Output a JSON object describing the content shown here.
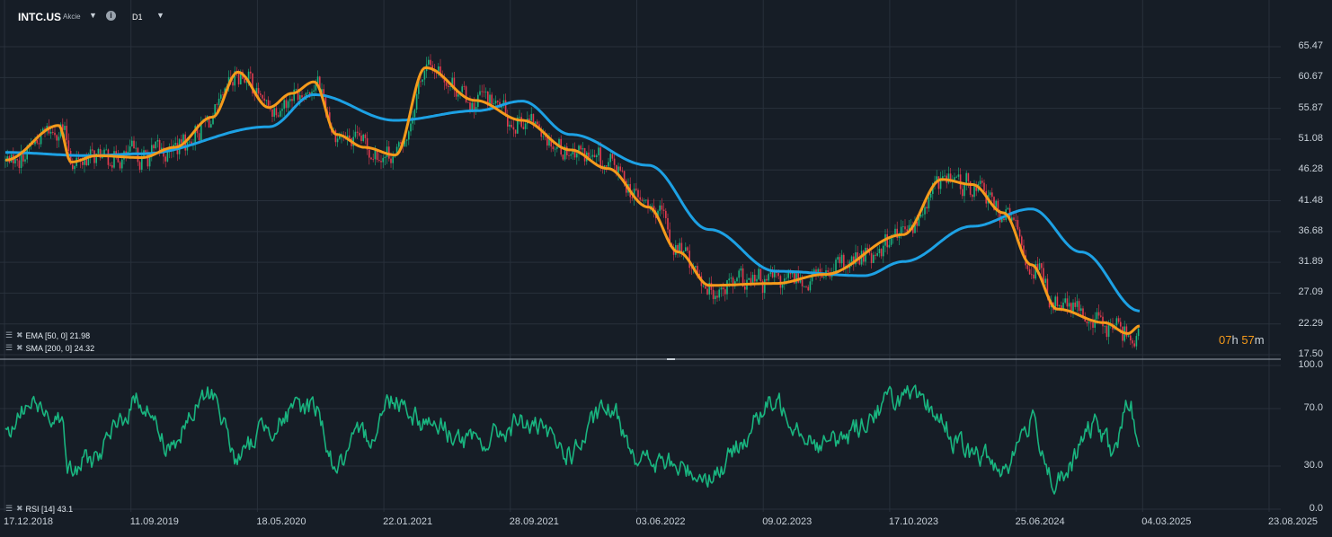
{
  "header": {
    "symbol": "INTC.US",
    "symbol_type": "Akcie",
    "timeframe": "D1"
  },
  "indicators": {
    "ema": {
      "label": "EMA [50, 0] 21.98",
      "color": "#f59a1b"
    },
    "sma": {
      "label": "SMA [200, 0] 24.32",
      "color": "#1da1e4"
    },
    "rsi": {
      "label": "RSI [14] 43.1",
      "color": "#19b47f"
    }
  },
  "countdown": {
    "hours": "07",
    "h_unit": "h",
    "minutes": "57",
    "m_unit": "m"
  },
  "colors": {
    "background": "#161d26",
    "grid": "#28303b",
    "candle_up": "#19b47f",
    "candle_down": "#e03a4e",
    "ema": "#f59a1b",
    "sma": "#1da1e4",
    "rsi": "#19b47f"
  },
  "chart_data": [
    {
      "type": "candlestick",
      "title": "INTC.US",
      "y_ticks": [
        "65.47",
        "60.67",
        "55.87",
        "51.08",
        "46.28",
        "41.48",
        "36.68",
        "31.89",
        "27.09",
        "22.29",
        "17.50"
      ],
      "ylim": [
        17.5,
        65.47
      ],
      "x_ticks": [
        "17.12.2018",
        "11.09.2019",
        "18.05.2020",
        "22.01.2021",
        "28.09.2021",
        "03.06.2022",
        "09.02.2023",
        "17.10.2023",
        "25.06.2024",
        "04.03.2025",
        "23.08.2025"
      ],
      "grid": true,
      "series": [
        {
          "name": "EMA [50, 0]",
          "x": [
            "17.12.2018",
            "01.04.2019",
            "25.04.2019",
            "15.06.2019",
            "11.09.2019",
            "15.11.2019",
            "28.01.2020",
            "18.03.2020",
            "18.05.2020",
            "02.07.2020",
            "15.08.2020",
            "28.09.2020",
            "22.11.2020",
            "22.01.2021",
            "22.03.2021",
            "28.06.2021",
            "28.09.2021",
            "01.01.2022",
            "15.03.2022",
            "03.06.2022",
            "01.08.2022",
            "01.10.2022",
            "09.02.2023",
            "15.05.2023",
            "17.10.2023",
            "01.01.2024",
            "01.03.2024",
            "01.05.2024",
            "25.06.2024",
            "15.08.2024",
            "15.11.2024",
            "01.01.2025",
            "24.01.2025"
          ],
          "values": [
            47.8,
            53.2,
            47.5,
            48.5,
            48.2,
            49.8,
            54.5,
            61.5,
            56.0,
            58.2,
            60.0,
            51.8,
            49.8,
            48.6,
            62.2,
            57.1,
            54.0,
            49.4,
            46.5,
            40.5,
            33.5,
            28.3,
            28.6,
            30.0,
            36.2,
            44.8,
            44.0,
            39.6,
            31.5,
            24.6,
            22.5,
            20.8,
            21.98
          ]
        },
        {
          "name": "SMA [200, 0]",
          "x": [
            "17.12.2018",
            "01.06.2019",
            "11.09.2019",
            "18.05.2020",
            "15.08.2020",
            "22.01.2021",
            "01.07.2021",
            "28.09.2021",
            "01.01.2022",
            "03.06.2022",
            "01.10.2022",
            "09.02.2023",
            "01.08.2023",
            "17.10.2023",
            "01.03.2024",
            "25.06.2024",
            "01.10.2024",
            "24.01.2025"
          ],
          "values": [
            49.0,
            48.5,
            48.8,
            53.0,
            58.0,
            54.0,
            55.5,
            57.0,
            51.8,
            47.0,
            37.0,
            30.5,
            29.8,
            32.0,
            37.5,
            40.2,
            33.5,
            24.32
          ]
        }
      ]
    },
    {
      "type": "line",
      "title": "RSI [14]",
      "y_ticks": [
        "100.0",
        "70.0",
        "30.0",
        "0.0"
      ],
      "ylim": [
        0,
        100
      ],
      "grid": true,
      "series": [
        {
          "name": "RSI [14]",
          "last_value": 43.1,
          "x": [
            "17.12.2018",
            "01.02.2019",
            "01.04.2019",
            "25.04.2019",
            "01.06.2019",
            "11.09.2019",
            "01.11.2019",
            "28.01.2020",
            "18.03.2020",
            "18.05.2020",
            "15.08.2020",
            "28.09.2020",
            "22.11.2020",
            "22.01.2021",
            "22.03.2021",
            "28.06.2021",
            "28.09.2021",
            "01.01.2022",
            "15.03.2022",
            "03.06.2022",
            "01.10.2022",
            "09.02.2023",
            "15.05.2023",
            "17.10.2023",
            "01.12.2023",
            "01.03.2024",
            "01.05.2024",
            "25.06.2024",
            "15.08.2024",
            "01.11.2024",
            "01.12.2024",
            "05.01.2025",
            "24.01.2025"
          ],
          "values": [
            50,
            72,
            68,
            25,
            35,
            76,
            45,
            80,
            35,
            60,
            72,
            30,
            50,
            78,
            62,
            45,
            60,
            40,
            68,
            32,
            25,
            72,
            45,
            78,
            70,
            38,
            30,
            60,
            18,
            58,
            40,
            72,
            43.1
          ]
        }
      ]
    }
  ]
}
